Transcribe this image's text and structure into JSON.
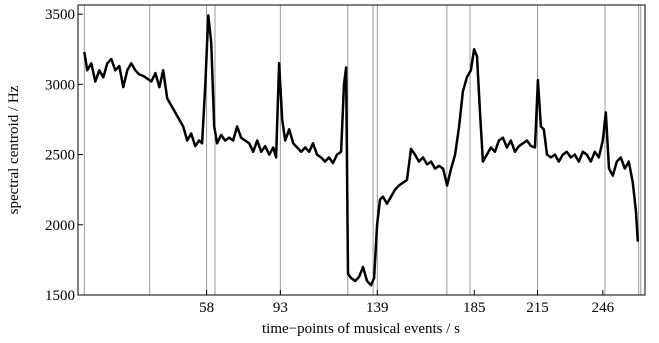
{
  "chart_data": {
    "type": "line",
    "xlabel": "time−points of musical events / s",
    "ylabel": "spectral centroid / Hz",
    "xlim": [
      -3,
      266
    ],
    "ylim": [
      1500,
      3565
    ],
    "xticks": [
      58,
      93,
      139,
      185,
      215,
      246
    ],
    "yticks": [
      1500,
      2000,
      2500,
      3000,
      3500
    ],
    "events": [
      0,
      31,
      58,
      62,
      93,
      125,
      137,
      139,
      172,
      183,
      215,
      247,
      263,
      264
    ],
    "color": "#000000",
    "x": [
      0,
      1.4,
      3.3,
      5.2,
      7.1,
      9.0,
      10.9,
      12.8,
      14.7,
      16.6,
      18.5,
      20.4,
      22.3,
      24.2,
      26.1,
      28.0,
      29.9,
      31.8,
      33.7,
      35.6,
      37.4,
      39.3,
      41.2,
      43.1,
      45.0,
      46.9,
      48.8,
      50.7,
      52.6,
      54.5,
      55.9,
      57.4,
      58.8,
      60.2,
      61.6,
      63.0,
      64.9,
      66.8,
      68.7,
      70.6,
      72.5,
      74.4,
      76.3,
      78.2,
      80.1,
      82.0,
      83.9,
      85.8,
      87.7,
      89.6,
      91.0,
      92.4,
      93.9,
      95.3,
      97.2,
      99.1,
      101.0,
      102.9,
      104.8,
      106.7,
      108.5,
      110.4,
      112.3,
      114.2,
      116.1,
      118.0,
      119.9,
      121.8,
      123.2,
      124.2,
      125.1,
      126.6,
      128.5,
      130.4,
      132.2,
      134.1,
      136.0,
      137.5,
      138.9,
      140.3,
      141.7,
      143.6,
      145.5,
      147.4,
      149.3,
      151.2,
      153.1,
      155.0,
      156.9,
      158.8,
      160.7,
      162.6,
      164.5,
      166.4,
      168.3,
      170.2,
      172.1,
      174.0,
      175.9,
      177.8,
      179.6,
      181.5,
      183.4,
      184.9,
      186.3,
      187.7,
      189.1,
      191.0,
      192.9,
      194.8,
      196.7,
      198.6,
      200.5,
      202.4,
      204.3,
      206.2,
      208.1,
      210.0,
      211.9,
      213.8,
      215.2,
      216.6,
      218.0,
      219.5,
      221.4,
      223.3,
      225.1,
      227.0,
      228.9,
      230.8,
      232.7,
      234.6,
      236.5,
      238.4,
      240.3,
      242.2,
      244.1,
      246.0,
      247.4,
      248.9,
      250.7,
      252.6,
      254.5,
      256.4,
      258.3,
      260.2,
      261.7,
      262.6
    ],
    "values": [
      3230,
      3100,
      3150,
      3020,
      3100,
      3050,
      3150,
      3180,
      3100,
      3130,
      2980,
      3100,
      3150,
      3100,
      3070,
      3060,
      3040,
      3020,
      3080,
      2980,
      3100,
      2900,
      2850,
      2800,
      2750,
      2700,
      2600,
      2650,
      2560,
      2600,
      2580,
      3000,
      3490,
      3300,
      2700,
      2580,
      2640,
      2600,
      2620,
      2600,
      2700,
      2620,
      2600,
      2580,
      2520,
      2600,
      2520,
      2560,
      2500,
      2550,
      2480,
      3150,
      2750,
      2600,
      2680,
      2580,
      2550,
      2520,
      2550,
      2520,
      2580,
      2500,
      2480,
      2450,
      2480,
      2440,
      2500,
      2520,
      3000,
      3120,
      1650,
      1620,
      1600,
      1630,
      1700,
      1600,
      1570,
      1620,
      2000,
      2180,
      2200,
      2150,
      2200,
      2250,
      2280,
      2300,
      2320,
      2540,
      2500,
      2450,
      2480,
      2430,
      2450,
      2400,
      2420,
      2400,
      2280,
      2400,
      2500,
      2700,
      2950,
      3050,
      3100,
      3250,
      3200,
      2800,
      2450,
      2500,
      2550,
      2520,
      2600,
      2620,
      2550,
      2600,
      2520,
      2560,
      2580,
      2600,
      2560,
      2550,
      3030,
      2700,
      2680,
      2500,
      2480,
      2500,
      2450,
      2500,
      2520,
      2480,
      2500,
      2450,
      2520,
      2500,
      2450,
      2520,
      2480,
      2600,
      2800,
      2400,
      2350,
      2450,
      2480,
      2400,
      2450,
      2300,
      2100,
      1880
    ]
  }
}
